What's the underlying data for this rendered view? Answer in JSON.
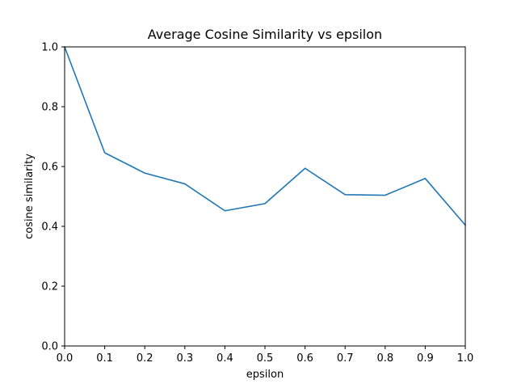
{
  "chart_data": {
    "type": "line",
    "title": "Average Cosine Similarity vs epsilon",
    "xlabel": "epsilon",
    "ylabel": "cosine similarity",
    "xlim": [
      0.0,
      1.0
    ],
    "ylim": [
      0.0,
      1.0
    ],
    "xticks": [
      0.0,
      0.1,
      0.2,
      0.3,
      0.4,
      0.5,
      0.6,
      0.7,
      0.8,
      0.9,
      1.0
    ],
    "xtick_labels": [
      "0.0",
      "0.1",
      "0.2",
      "0.3",
      "0.4",
      "0.5",
      "0.6",
      "0.7",
      "0.8",
      "0.9",
      "1.0"
    ],
    "yticks": [
      0.0,
      0.2,
      0.4,
      0.6,
      0.8,
      1.0
    ],
    "ytick_labels": [
      "0.0",
      "0.2",
      "0.4",
      "0.6",
      "0.8",
      "1.0"
    ],
    "grid": false,
    "legend": false,
    "series": [
      {
        "color": "#1f77b4",
        "x": [
          0.0,
          0.1,
          0.2,
          0.3,
          0.4,
          0.5,
          0.6,
          0.7,
          0.8,
          0.9,
          1.0
        ],
        "y": [
          1.0,
          0.646,
          0.578,
          0.542,
          0.452,
          0.476,
          0.594,
          0.506,
          0.504,
          0.56,
          0.404
        ]
      }
    ]
  }
}
